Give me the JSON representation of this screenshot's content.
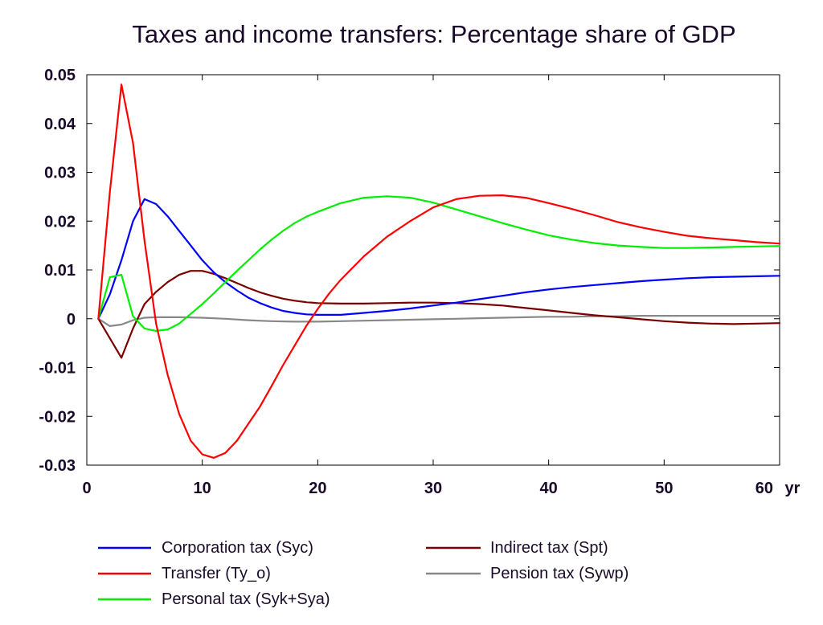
{
  "chart_data": {
    "type": "line",
    "title": "Taxes and income transfers: Percentage share of GDP",
    "xlabel": "",
    "ylabel": "",
    "x_unit_label": "yr",
    "xlim": [
      0,
      60
    ],
    "ylim": [
      -0.03,
      0.05
    ],
    "x_ticks": [
      0,
      10,
      20,
      30,
      40,
      50,
      60
    ],
    "x_tick_labels": [
      "0",
      "10",
      "20",
      "30",
      "40",
      "50",
      "60"
    ],
    "y_ticks": [
      -0.03,
      -0.02,
      -0.01,
      0,
      0.01,
      0.02,
      0.03,
      0.04,
      0.05
    ],
    "y_tick_labels": [
      "-0.03",
      "-0.02",
      "-0.01",
      "0",
      "0.01",
      "0.02",
      "0.03",
      "0.04",
      "0.05"
    ],
    "grid": false,
    "legend_position": "bottom",
    "series": [
      {
        "name": "Corporation tax (Syc)",
        "color": "#0000ff",
        "x": [
          1,
          2,
          3,
          4,
          5,
          6,
          7,
          8,
          9,
          10,
          11,
          12,
          13,
          14,
          15,
          16,
          17,
          18,
          19,
          20,
          22,
          24,
          26,
          28,
          30,
          32,
          34,
          36,
          38,
          40,
          42,
          44,
          46,
          48,
          50,
          52,
          54,
          56,
          58,
          60
        ],
        "y": [
          0,
          0.005,
          0.012,
          0.02,
          0.0245,
          0.0235,
          0.021,
          0.018,
          0.015,
          0.012,
          0.0095,
          0.0075,
          0.0058,
          0.0043,
          0.0032,
          0.0023,
          0.0016,
          0.0012,
          0.0009,
          0.0008,
          0.0008,
          0.0012,
          0.0016,
          0.0021,
          0.0027,
          0.0033,
          0.004,
          0.0047,
          0.0054,
          0.006,
          0.0065,
          0.0069,
          0.0073,
          0.0077,
          0.008,
          0.0083,
          0.0085,
          0.0086,
          0.0087,
          0.0088
        ]
      },
      {
        "name": "Transfer (Ty_o)",
        "color": "#ff0000",
        "x": [
          1,
          2,
          3,
          4,
          5,
          6,
          7,
          8,
          9,
          10,
          11,
          12,
          13,
          14,
          15,
          16,
          17,
          18,
          19,
          20,
          21,
          22,
          24,
          26,
          28,
          30,
          32,
          34,
          36,
          38,
          40,
          42,
          44,
          46,
          48,
          50,
          52,
          54,
          56,
          58,
          60
        ],
        "y": [
          0,
          0.026,
          0.048,
          0.036,
          0.016,
          -0.001,
          -0.0115,
          -0.0195,
          -0.025,
          -0.0278,
          -0.0285,
          -0.0275,
          -0.025,
          -0.0215,
          -0.018,
          -0.0138,
          -0.0095,
          -0.0055,
          -0.0015,
          0.002,
          0.0052,
          0.008,
          0.0128,
          0.0168,
          0.02,
          0.0228,
          0.0245,
          0.0252,
          0.0253,
          0.0248,
          0.0237,
          0.0225,
          0.0212,
          0.0198,
          0.0187,
          0.0178,
          0.017,
          0.0165,
          0.0161,
          0.0157,
          0.0154
        ]
      },
      {
        "name": "Personal tax (Syk+Sya)",
        "color": "#00ee00",
        "x": [
          1,
          2,
          3,
          4,
          5,
          6,
          7,
          8,
          9,
          10,
          11,
          12,
          13,
          14,
          15,
          16,
          17,
          18,
          19,
          20,
          22,
          24,
          26,
          28,
          30,
          32,
          34,
          36,
          38,
          40,
          42,
          44,
          46,
          48,
          50,
          52,
          54,
          56,
          58,
          60
        ],
        "y": [
          0,
          0.0085,
          0.009,
          0.0005,
          -0.002,
          -0.0025,
          -0.0022,
          -0.001,
          0.001,
          0.003,
          0.0052,
          0.0075,
          0.0098,
          0.012,
          0.0142,
          0.0162,
          0.018,
          0.0196,
          0.0209,
          0.0219,
          0.0237,
          0.0248,
          0.0251,
          0.0248,
          0.0238,
          0.0224,
          0.021,
          0.0196,
          0.0183,
          0.0171,
          0.0162,
          0.0155,
          0.015,
          0.0147,
          0.0145,
          0.0145,
          0.0146,
          0.0147,
          0.0148,
          0.0149
        ]
      },
      {
        "name": "Indirect tax (Spt)",
        "color": "#7a0000",
        "x": [
          1,
          2,
          3,
          4,
          5,
          6,
          7,
          8,
          9,
          10,
          11,
          12,
          13,
          14,
          15,
          16,
          17,
          18,
          19,
          20,
          22,
          24,
          26,
          28,
          30,
          32,
          34,
          36,
          38,
          40,
          42,
          44,
          46,
          48,
          50,
          52,
          54,
          56,
          58,
          60
        ],
        "y": [
          0,
          -0.004,
          -0.008,
          -0.002,
          0.003,
          0.0055,
          0.0075,
          0.009,
          0.0098,
          0.0098,
          0.0092,
          0.0083,
          0.0073,
          0.0063,
          0.0054,
          0.0047,
          0.0041,
          0.0037,
          0.0034,
          0.0032,
          0.0031,
          0.0031,
          0.0032,
          0.0033,
          0.0033,
          0.0032,
          0.003,
          0.0027,
          0.0022,
          0.0017,
          0.0012,
          0.0007,
          0.0003,
          -0.0001,
          -0.0005,
          -0.0008,
          -0.001,
          -0.0011,
          -0.001,
          -0.0009
        ]
      },
      {
        "name": "Pension tax (Sywp)",
        "color": "#888888",
        "x": [
          1,
          2,
          3,
          4,
          5,
          6,
          8,
          10,
          12,
          14,
          16,
          18,
          20,
          22,
          24,
          26,
          28,
          30,
          32,
          34,
          36,
          38,
          40,
          42,
          44,
          46,
          48,
          50,
          52,
          54,
          56,
          58,
          60
        ],
        "y": [
          0,
          -0.0015,
          -0.0012,
          -0.0003,
          0.0002,
          0.0003,
          0.0003,
          0.0002,
          0,
          -0.0003,
          -0.0005,
          -0.0006,
          -0.0006,
          -0.0005,
          -0.0004,
          -0.0003,
          -0.0002,
          -0.0001,
          0,
          0.0001,
          0.0002,
          0.0003,
          0.0004,
          0.0004,
          0.0005,
          0.0005,
          0.0006,
          0.0006,
          0.0006,
          0.0006,
          0.0006,
          0.0006,
          0.0006
        ]
      }
    ]
  }
}
